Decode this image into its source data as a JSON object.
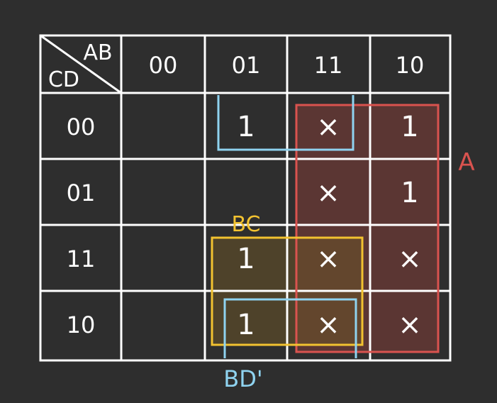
{
  "kmap": {
    "corner": {
      "row_var": "CD",
      "col_var": "AB"
    },
    "col_headers": [
      "00",
      "01",
      "11",
      "10"
    ],
    "row_headers": [
      "00",
      "01",
      "11",
      "10"
    ],
    "cells": [
      [
        "",
        "1",
        "×",
        "1"
      ],
      [
        "",
        "",
        "×",
        "1"
      ],
      [
        "",
        "1",
        "×",
        "×"
      ],
      [
        "",
        "1",
        "×",
        "×"
      ]
    ],
    "groups": [
      {
        "label": "A",
        "color": "#d9534f"
      },
      {
        "label": "BC",
        "color": "#f2c230"
      },
      {
        "label": "BD'",
        "color": "#8fd3f0"
      },
      {
        "label": "",
        "color": "#8fd3f0"
      }
    ]
  },
  "colors": {
    "background": "#2e2e2e",
    "grid": "#ffffff",
    "text": "#ffffff",
    "group_A_fill": "#6b3a36",
    "group_BC_fill": "#5a4a2a"
  }
}
